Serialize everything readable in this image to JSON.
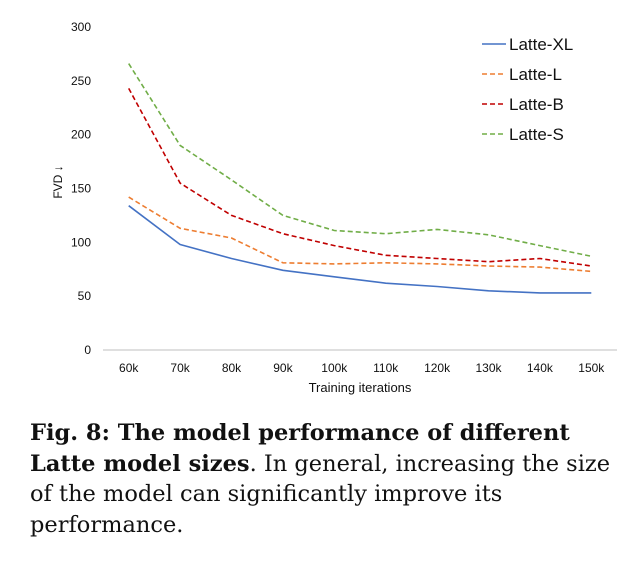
{
  "chart_data": {
    "type": "line",
    "xlabel": "Training iterations",
    "ylabel": "FVD ↓",
    "categories": [
      "60k",
      "70k",
      "80k",
      "90k",
      "100k",
      "110k",
      "120k",
      "130k",
      "140k",
      "150k"
    ],
    "ylim": [
      0,
      300
    ],
    "yticks": [
      0,
      50,
      100,
      150,
      200,
      250,
      300
    ],
    "grid": false,
    "legend_position": "top-right",
    "series": [
      {
        "name": "Latte-XL",
        "color": "#4472c4",
        "style": "solid",
        "values": [
          134,
          98,
          85,
          74,
          68,
          62,
          59,
          55,
          53,
          53
        ]
      },
      {
        "name": "Latte-L",
        "color": "#ed7d31",
        "style": "dashed",
        "values": [
          142,
          113,
          104,
          81,
          80,
          81,
          80,
          78,
          77,
          73
        ]
      },
      {
        "name": "Latte-B",
        "color": "#c00000",
        "style": "dashed",
        "values": [
          243,
          155,
          125,
          108,
          97,
          88,
          85,
          82,
          85,
          78
        ]
      },
      {
        "name": "Latte-S",
        "color": "#70ad47",
        "style": "dashed",
        "values": [
          266,
          190,
          158,
          125,
          111,
          108,
          112,
          107,
          97,
          87
        ]
      }
    ]
  },
  "caption": {
    "fig_label": "Fig. 8",
    "bold_text": ": The model performance of different Latte model sizes",
    "text": ". In general, increasing the size of the model can significantly improve its performance."
  }
}
